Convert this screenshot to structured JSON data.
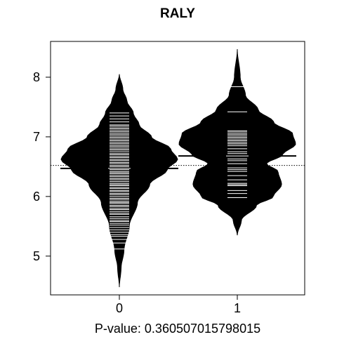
{
  "chart_data": {
    "type": "beanplot",
    "title": "RALY",
    "xlabel": "P-value: 0.360507015798015",
    "ylabel": "",
    "categories": [
      "0",
      "1"
    ],
    "ylim": [
      4.35,
      8.6
    ],
    "yticks": [
      5,
      6,
      7,
      8
    ],
    "overall_mean": 6.52,
    "grid": false,
    "legend": "none",
    "colors": {
      "bean": "#000000",
      "line": "#ffffff",
      "axis": "#000000",
      "background": "#ffffff"
    },
    "groups": [
      {
        "category": "0",
        "mean": 6.47,
        "range": [
          4.48,
          8.05
        ],
        "density_profile": [
          [
            4.48,
            0.0
          ],
          [
            4.8,
            0.03
          ],
          [
            5.1,
            0.08
          ],
          [
            5.5,
            0.17
          ],
          [
            5.9,
            0.31
          ],
          [
            6.2,
            0.52
          ],
          [
            6.45,
            0.82
          ],
          [
            6.62,
            1.0
          ],
          [
            6.8,
            0.88
          ],
          [
            7.0,
            0.55
          ],
          [
            7.2,
            0.34
          ],
          [
            7.4,
            0.24
          ],
          [
            7.6,
            0.13
          ],
          [
            7.8,
            0.06
          ],
          [
            8.05,
            0.0
          ]
        ],
        "observations": [
          5.12,
          5.22,
          5.28,
          5.33,
          5.36,
          5.4,
          5.44,
          5.48,
          5.52,
          5.55,
          5.58,
          5.6,
          5.63,
          5.66,
          5.7,
          5.72,
          5.75,
          5.78,
          5.8,
          5.83,
          5.85,
          5.88,
          5.9,
          5.92,
          5.95,
          5.97,
          6.0,
          6.03,
          6.05,
          6.08,
          6.1,
          6.13,
          6.15,
          6.18,
          6.2,
          6.22,
          6.25,
          6.28,
          6.3,
          6.33,
          6.35,
          6.38,
          6.4,
          6.42,
          6.45,
          6.47,
          6.5,
          6.52,
          6.55,
          6.57,
          6.6,
          6.62,
          6.65,
          6.67,
          6.7,
          6.72,
          6.75,
          6.78,
          6.8,
          6.83,
          6.85,
          6.88,
          6.9,
          6.93,
          6.95,
          6.98,
          7.0,
          7.03,
          7.05,
          7.08,
          7.1,
          7.13,
          7.15,
          7.18,
          7.2,
          7.25,
          7.3,
          7.35,
          7.4
        ]
      },
      {
        "category": "1",
        "mean": 6.68,
        "range": [
          5.35,
          8.47
        ],
        "density_profile": [
          [
            5.35,
            0.0
          ],
          [
            5.6,
            0.07
          ],
          [
            5.85,
            0.33
          ],
          [
            6.0,
            0.62
          ],
          [
            6.2,
            0.76
          ],
          [
            6.42,
            0.7
          ],
          [
            6.55,
            0.5
          ],
          [
            6.7,
            0.78
          ],
          [
            6.88,
            1.0
          ],
          [
            7.05,
            0.95
          ],
          [
            7.25,
            0.62
          ],
          [
            7.45,
            0.36
          ],
          [
            7.7,
            0.14
          ],
          [
            8.0,
            0.05
          ],
          [
            8.47,
            0.0
          ]
        ],
        "observations": [
          5.98,
          6.05,
          6.1,
          6.18,
          6.2,
          6.22,
          6.28,
          6.35,
          6.42,
          6.45,
          6.48,
          6.55,
          6.6,
          6.63,
          6.68,
          6.72,
          6.75,
          6.8,
          6.85,
          6.88,
          6.9,
          6.93,
          6.95,
          6.98,
          7.0,
          7.03,
          7.05,
          7.08,
          7.1,
          7.42,
          7.84
        ]
      }
    ]
  }
}
